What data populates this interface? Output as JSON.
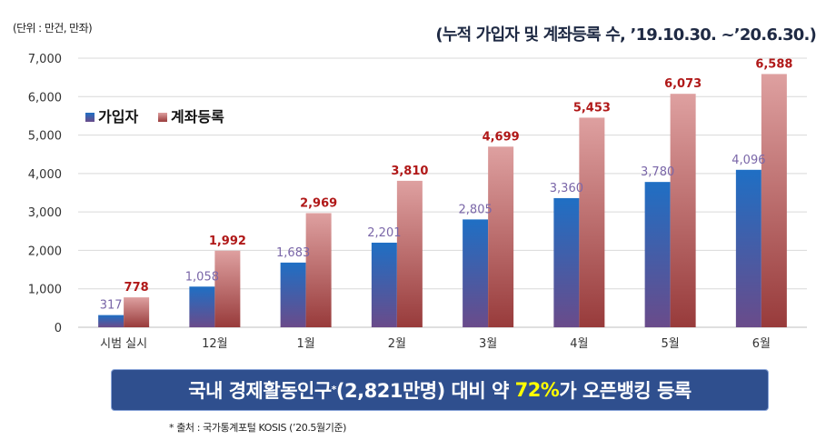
{
  "unit_label": "(단위 : 만건, 만좌)",
  "title": "(누적 가입자 및 계좌등록 수, ’19.10.30. ~’20.6.30.)",
  "banner": {
    "part1": "국내 경제활동인구",
    "sup": "*",
    "part2": "(2,821만명) 대비 약 ",
    "highlight": "72%",
    "part3": "가 오픈뱅킹 등록"
  },
  "source_note": "* 출처 : 국가통계포털 KOSIS (’20.5월기준)",
  "colors": {
    "subscribers_top": "#1f6fc4",
    "subscribers_bottom": "#6a4b8a",
    "accounts_top": "#dea0a0",
    "accounts_bottom": "#983b3b",
    "subscriber_label": "#7a66a8",
    "account_label": "#b01818",
    "banner_highlight": "#ffff00"
  },
  "chart_data": {
    "type": "bar",
    "categories": [
      "시범 실시",
      "12월",
      "1월",
      "2월",
      "3월",
      "4월",
      "5월",
      "6월"
    ],
    "series": [
      {
        "name": "가입자",
        "values": [
          317,
          1058,
          1683,
          2201,
          2805,
          3360,
          3780,
          4096
        ]
      },
      {
        "name": "계좌등록",
        "values": [
          778,
          1992,
          2969,
          3810,
          4699,
          5453,
          6073,
          6588
        ]
      }
    ],
    "ylim": [
      0,
      7000
    ],
    "yticks": [
      0,
      1000,
      2000,
      3000,
      4000,
      5000,
      6000,
      7000
    ],
    "ytick_labels": [
      "0",
      "1,000",
      "2,000",
      "3,000",
      "4,000",
      "5,000",
      "6,000",
      "7,000"
    ],
    "data_labels": [
      [
        "317",
        "1,058",
        "1,683",
        "2,201",
        "2,805",
        "3,360",
        "3,780",
        "4,096"
      ],
      [
        "778",
        "1,992",
        "2,969",
        "3,810",
        "4,699",
        "5,453",
        "6,073",
        "6,588"
      ]
    ],
    "grid": true,
    "legend_position": "top-left"
  }
}
